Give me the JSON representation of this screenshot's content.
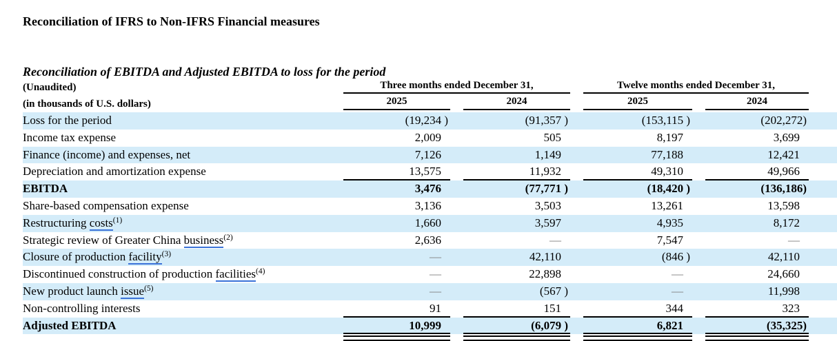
{
  "doc": {
    "title": "Reconciliation of IFRS to Non-IFRS Financial measures",
    "subtitle": "Reconciliation of EBITDA and Adjusted EBITDA to loss for the period"
  },
  "theme": {
    "stripe_blue": "#d4ecf9",
    "footnote_link_blue": "#3a72d8",
    "dash_gray": "#7f7f7f"
  },
  "table": {
    "unaudited_note": "(Unaudited)",
    "units_note": "(in thousands of U.S. dollars)",
    "group_headers": [
      "Three months ended December 31,",
      "Twelve months ended December 31,"
    ],
    "col_years": [
      "2025",
      "2024",
      "2025",
      "2024"
    ],
    "rows": [
      {
        "label": {
          "pre": "Loss for the period"
        },
        "values": [
          "(19,234 )",
          "(91,357 )",
          "(153,115 )",
          "(202,272)"
        ]
      },
      {
        "label": {
          "pre": "Income tax expense"
        },
        "values": [
          "2,009",
          "505",
          "8,197",
          "3,699"
        ]
      },
      {
        "label": {
          "pre": "Finance (income) and expenses, net"
        },
        "values": [
          "7,126",
          "1,149",
          "77,188",
          "12,421"
        ]
      },
      {
        "label": {
          "pre": "Depreciation and amortization expense"
        },
        "rule_below": true,
        "values": [
          "13,575",
          "11,932",
          "49,310",
          "49,966"
        ]
      },
      {
        "label": {
          "pre": "EBITDA"
        },
        "bold": true,
        "values": [
          "3,476",
          "(77,771 )",
          "(18,420 )",
          "(136,186)"
        ]
      },
      {
        "label": {
          "pre": "Share-based compensation expense"
        },
        "values": [
          "3,136",
          "3,503",
          "13,261",
          "13,598"
        ]
      },
      {
        "label": {
          "pre": "Restructuring ",
          "link": "costs",
          "sup": "(1)"
        },
        "values": [
          "1,660",
          "3,597",
          "4,935",
          "8,172"
        ]
      },
      {
        "label": {
          "pre": "Strategic review of Greater China ",
          "link": "business",
          "sup": "(2)"
        },
        "values": [
          "2,636",
          "—",
          "7,547",
          "—"
        ]
      },
      {
        "label": {
          "pre": "Closure of production ",
          "link": "facility",
          "sup": "(3)"
        },
        "values": [
          "—",
          "42,110",
          "(846 )",
          "42,110"
        ]
      },
      {
        "label": {
          "pre": "Discontinued construction of production ",
          "link": "facilities",
          "sup": "(4)"
        },
        "values": [
          "—",
          "22,898",
          "—",
          "24,660"
        ]
      },
      {
        "label": {
          "pre": "New product launch ",
          "link": "issue",
          "sup": "(5)"
        },
        "values": [
          "—",
          "(567 )",
          "—",
          "11,998"
        ]
      },
      {
        "label": {
          "pre": "Non-controlling interests"
        },
        "rule_below": true,
        "values": [
          "91",
          "151",
          "344",
          "323"
        ]
      },
      {
        "label": {
          "pre": "Adjusted EBITDA"
        },
        "bold": true,
        "total": true,
        "values": [
          "10,999",
          "(6,079 )",
          "6,821",
          "(35,325)"
        ]
      }
    ]
  }
}
